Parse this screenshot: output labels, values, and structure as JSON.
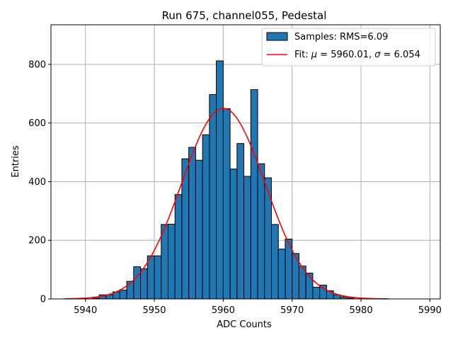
{
  "chart_data": {
    "type": "bar",
    "title": "Run 675, channel055, Pedestal",
    "xlabel": "ADC Counts",
    "ylabel": "Entries",
    "xlim": [
      5935.0,
      5991.5
    ],
    "ylim": [
      0,
      935
    ],
    "xticks": [
      5940,
      5950,
      5960,
      5970,
      5980,
      5990
    ],
    "yticks": [
      0,
      200,
      400,
      600,
      800
    ],
    "grid": true,
    "legend_position": "top-right",
    "colors": {
      "bars": "#1f77b4",
      "bar_edge": "#000000",
      "fit": "#ff0000",
      "grid": "#b0b0b0"
    },
    "histogram": {
      "name": "Samples: RMS=6.09",
      "bin_edges": [
        5941.0,
        5942.0,
        5943.0,
        5944.0,
        5945.0,
        5946.0,
        5947.0,
        5948.0,
        5949.0,
        5950.0,
        5951.0,
        5952.0,
        5953.0,
        5954.0,
        5955.0,
        5956.0,
        5957.0,
        5958.0,
        5959.0,
        5960.0,
        5961.0,
        5962.0,
        5963.0,
        5964.0,
        5965.0,
        5966.0,
        5967.0,
        5968.0,
        5969.0,
        5970.0,
        5971.0,
        5972.0,
        5973.0,
        5974.0,
        5975.0,
        5976.0,
        5977.0,
        5978.0,
        5979.0
      ],
      "counts": [
        3,
        14,
        14,
        24,
        30,
        60,
        110,
        103,
        147,
        147,
        254,
        255,
        356,
        478,
        517,
        473,
        560,
        697,
        812,
        649,
        443,
        530,
        418,
        714,
        461,
        413,
        254,
        170,
        204,
        155,
        112,
        88,
        40,
        47,
        28,
        14,
        7,
        3
      ]
    },
    "fit": {
      "name": "Fit: μ = 5960.01, σ = 6.054",
      "label_plain": "Fit: ",
      "label_mu": "μ",
      "label_mid": " = 5960.01, ",
      "label_sigma": "σ",
      "label_end": " = 6.054",
      "mu": 5960.01,
      "sigma": 6.054,
      "amplitude": 650,
      "x_range": [
        5937.0,
        5984.0
      ]
    }
  }
}
